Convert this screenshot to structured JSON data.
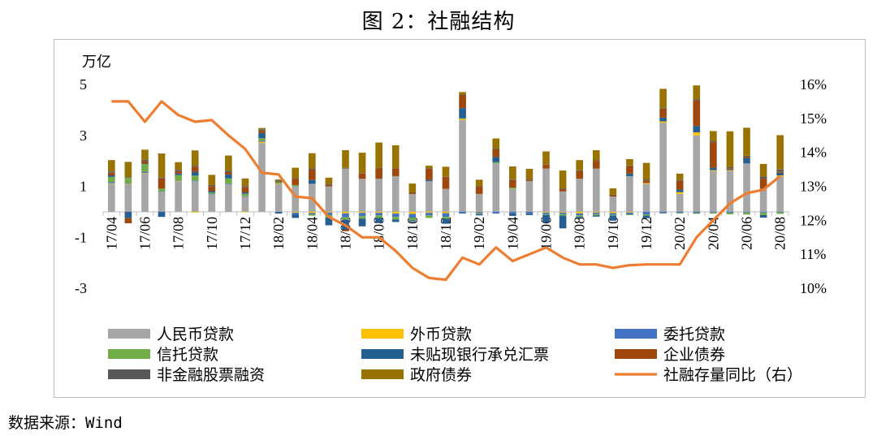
{
  "title": "图 2：社融结构",
  "source": "数据来源：Wind",
  "chart_data": {
    "type": "bar",
    "stacked": true,
    "ylabel": "万亿",
    "ylim": [
      -3,
      5
    ],
    "yticks": [
      -3,
      -1,
      1,
      3,
      5
    ],
    "y2lim": [
      10,
      16
    ],
    "y2ticks": [
      "10%",
      "11%",
      "12%",
      "13%",
      "14%",
      "15%",
      "16%"
    ],
    "categories": [
      "17/04",
      "17/05",
      "17/06",
      "17/07",
      "17/08",
      "17/09",
      "17/10",
      "17/11",
      "17/12",
      "18/01",
      "18/02",
      "18/03",
      "18/04",
      "18/05",
      "18/06",
      "18/07",
      "18/08",
      "18/09",
      "18/10",
      "18/11",
      "18/12",
      "19/01",
      "19/02",
      "19/03",
      "19/04",
      "19/05",
      "19/06",
      "19/07",
      "19/08",
      "19/09",
      "19/10",
      "19/11",
      "19/12",
      "20/01",
      "20/02",
      "20/03",
      "20/04",
      "20/05",
      "20/06",
      "20/07",
      "20/08"
    ],
    "xticklabels": [
      "17/04",
      "17/06",
      "17/08",
      "17/10",
      "17/12",
      "18/02",
      "18/04",
      "18/06",
      "18/08",
      "18/10",
      "18/12",
      "19/02",
      "19/04",
      "19/06",
      "19/08",
      "19/10",
      "19/12",
      "20/02",
      "20/04",
      "20/06",
      "20/08"
    ],
    "series": [
      {
        "name": "人民币贷款",
        "color": "#a6a6a6",
        "values": [
          1.1,
          1.1,
          1.5,
          0.8,
          1.2,
          1.2,
          0.7,
          1.1,
          0.6,
          2.7,
          1.1,
          1.0,
          1.1,
          1.0,
          1.7,
          1.3,
          1.3,
          1.4,
          0.7,
          1.2,
          0.9,
          3.6,
          0.7,
          1.9,
          0.9,
          1.2,
          1.7,
          0.8,
          1.3,
          1.7,
          0.6,
          1.4,
          1.1,
          3.5,
          0.7,
          3.0,
          1.6,
          1.6,
          1.9,
          0.9,
          1.4
        ]
      },
      {
        "name": "外币贷款",
        "color": "#ffc000",
        "values": [
          0.02,
          0.01,
          0.02,
          0.0,
          0.02,
          -0.03,
          0.0,
          0.0,
          -0.02,
          0.05,
          0.01,
          -0.03,
          -0.05,
          -0.03,
          -0.06,
          -0.04,
          -0.04,
          -0.07,
          -0.08,
          -0.04,
          -0.05,
          0.04,
          -0.01,
          0.0,
          0.0,
          0.0,
          -0.03,
          -0.03,
          -0.06,
          -0.03,
          -0.05,
          -0.03,
          0.03,
          0.05,
          0.07,
          0.12,
          0.03,
          0.03,
          0.0,
          0.0,
          0.03
        ]
      },
      {
        "name": "委托贷款",
        "color": "#4472c4",
        "values": [
          0.05,
          0.02,
          0.05,
          0.01,
          0.02,
          0.02,
          0.01,
          0.01,
          0.01,
          0.04,
          -0.02,
          -0.06,
          -0.05,
          -0.1,
          -0.15,
          -0.13,
          -0.1,
          -0.13,
          -0.15,
          -0.1,
          -0.15,
          -0.07,
          -0.05,
          -0.07,
          -0.06,
          -0.08,
          -0.06,
          -0.06,
          -0.08,
          -0.06,
          -0.07,
          -0.07,
          -0.1,
          -0.05,
          -0.04,
          -0.05,
          -0.03,
          -0.04,
          -0.03,
          -0.03,
          -0.02
        ]
      },
      {
        "name": "信托贷款",
        "color": "#70ad47",
        "values": [
          0.2,
          0.2,
          0.3,
          0.1,
          0.2,
          0.2,
          0.05,
          0.2,
          0.1,
          0.1,
          0.05,
          0.05,
          -0.05,
          -0.1,
          -0.1,
          -0.1,
          -0.1,
          -0.1,
          -0.1,
          -0.1,
          -0.07,
          0.03,
          -0.03,
          0.05,
          0.05,
          0.01,
          -0.03,
          -0.06,
          -0.06,
          -0.05,
          -0.03,
          -0.03,
          -0.05,
          -0.02,
          -0.03,
          -0.03,
          -0.04,
          -0.06,
          -0.08,
          -0.1,
          -0.06
        ]
      },
      {
        "name": "未贴现银行承兑汇票",
        "color": "#255e91",
        "values": [
          0.06,
          -0.25,
          0.02,
          -0.2,
          0.06,
          0.15,
          0.05,
          0.15,
          0.05,
          0.2,
          -0.05,
          -0.15,
          0.15,
          -0.3,
          -0.4,
          -0.3,
          -0.2,
          -0.1,
          -0.05,
          0.05,
          -0.2,
          0.4,
          -0.05,
          0.2,
          -0.1,
          -0.05,
          -0.3,
          -0.5,
          -0.05,
          -0.05,
          -0.2,
          0.1,
          -0.1,
          0.15,
          0.1,
          0.25,
          0.1,
          0.03,
          0.2,
          -0.1,
          0.1
        ]
      },
      {
        "name": "企业债券",
        "color": "#9e480e",
        "values": [
          0.1,
          -0.2,
          0.1,
          0.4,
          0.1,
          0.2,
          0.2,
          0.1,
          0.2,
          0.1,
          0.02,
          0.25,
          0.4,
          0.05,
          -0.05,
          0.2,
          0.4,
          0.3,
          0.05,
          0.45,
          0.45,
          0.5,
          0.3,
          0.3,
          0.3,
          0.05,
          0.15,
          0.1,
          0.3,
          0.3,
          0.05,
          0.3,
          0.1,
          0.35,
          0.35,
          1.0,
          1.0,
          0.05,
          0.05,
          0.4,
          0.05
        ]
      },
      {
        "name": "非金融股票融资",
        "color": "#595959",
        "values": [
          0.05,
          0.03,
          0.05,
          0.03,
          0.05,
          0.04,
          0.04,
          0.05,
          0.05,
          0.05,
          0.04,
          0.03,
          0.05,
          0.04,
          0.02,
          0.02,
          0.02,
          0.01,
          0.01,
          0.01,
          0.02,
          0.03,
          0.01,
          0.03,
          0.03,
          0.03,
          0.02,
          0.02,
          0.03,
          0.02,
          0.02,
          0.02,
          0.04,
          0.03,
          0.03,
          0.04,
          0.04,
          0.05,
          0.05,
          0.08,
          0.08
        ]
      },
      {
        "name": "政府债券",
        "color": "#997300",
        "values": [
          0.45,
          0.6,
          0.4,
          0.95,
          0.3,
          0.6,
          0.4,
          0.6,
          0.3,
          0.05,
          0.05,
          0.4,
          0.6,
          0.25,
          0.7,
          0.8,
          1.0,
          0.9,
          0.35,
          0.1,
          0.4,
          0.1,
          0.25,
          0.4,
          0.5,
          0.4,
          0.5,
          0.7,
          0.4,
          0.4,
          0.25,
          0.25,
          0.65,
          0.75,
          0.25,
          0.55,
          0.4,
          1.4,
          1.1,
          0.5,
          1.35
        ]
      },
      {
        "name": "社融存量同比（右）",
        "color": "#ed7d31",
        "type": "line",
        "axis": "right",
        "values": [
          15.5,
          15.5,
          14.9,
          15.5,
          15.1,
          14.9,
          14.95,
          14.5,
          14.1,
          13.4,
          13.35,
          12.7,
          12.65,
          12.1,
          11.85,
          11.5,
          11.5,
          11.1,
          10.6,
          10.3,
          10.25,
          10.9,
          10.7,
          11.2,
          10.8,
          11.0,
          11.2,
          10.9,
          10.7,
          10.7,
          10.6,
          10.68,
          10.7,
          10.7,
          10.7,
          11.5,
          12.0,
          12.5,
          12.8,
          12.9,
          13.3
        ]
      }
    ],
    "legend": "bottom"
  }
}
